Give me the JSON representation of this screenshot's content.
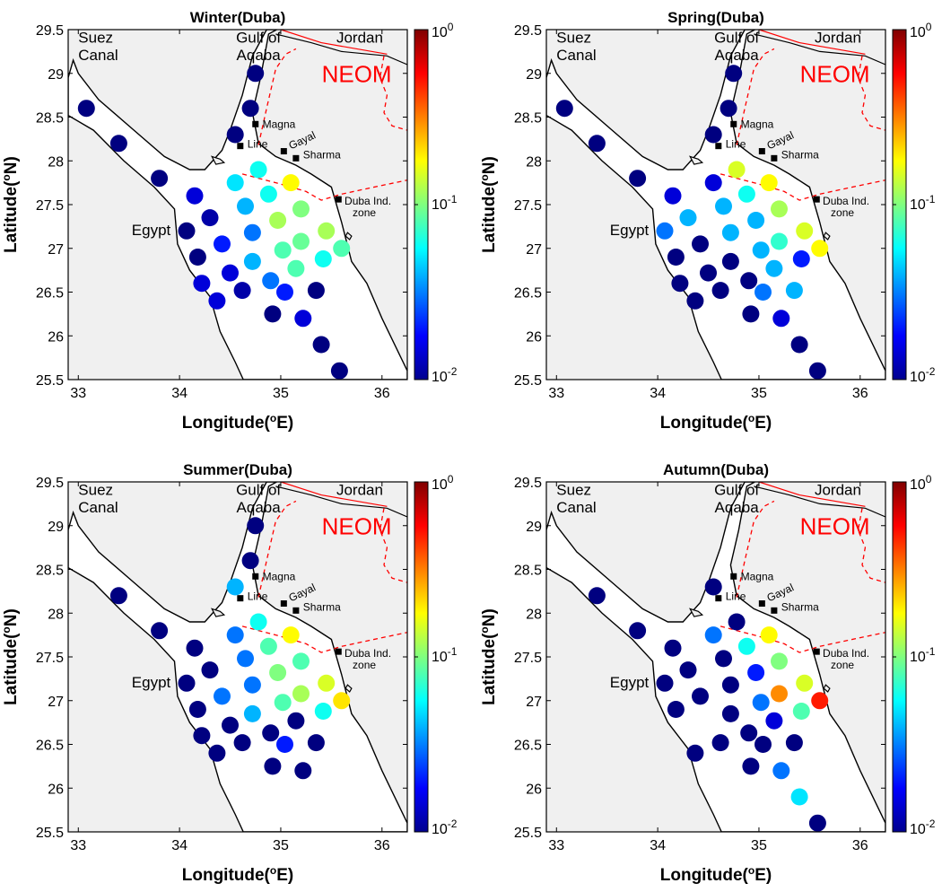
{
  "chart_data": [
    {
      "type": "scatter",
      "title": "Winter(Duba)",
      "xlabel": "Longitude(°E)",
      "ylabel": "Latitude(°N)",
      "xlim": [
        32.9,
        36.25
      ],
      "ylim": [
        25.5,
        29.5
      ],
      "xticks": [
        33,
        34,
        35,
        36
      ],
      "yticks": [
        25.5,
        26,
        26.5,
        27,
        27.5,
        28,
        28.5,
        29,
        29.5
      ],
      "color_scale": "log",
      "clim": [
        0.01,
        1
      ],
      "colorbar_ticks": [
        "10^0",
        "10^-1",
        "10^-2"
      ],
      "points": [
        {
          "lon": 33.08,
          "lat": 28.6,
          "value": 0.01
        },
        {
          "lon": 33.4,
          "lat": 28.2,
          "value": 0.01
        },
        {
          "lon": 33.8,
          "lat": 27.8,
          "value": 0.01
        },
        {
          "lon": 34.75,
          "lat": 29.0,
          "value": 0.01
        },
        {
          "lon": 34.7,
          "lat": 28.6,
          "value": 0.01
        },
        {
          "lon": 34.55,
          "lat": 28.3,
          "value": 0.01
        },
        {
          "lon": 34.78,
          "lat": 27.9,
          "value": 0.06
        },
        {
          "lon": 34.15,
          "lat": 27.6,
          "value": 0.015
        },
        {
          "lon": 34.55,
          "lat": 27.75,
          "value": 0.05
        },
        {
          "lon": 34.88,
          "lat": 27.62,
          "value": 0.06
        },
        {
          "lon": 35.1,
          "lat": 27.75,
          "value": 0.18
        },
        {
          "lon": 34.3,
          "lat": 27.35,
          "value": 0.012
        },
        {
          "lon": 34.65,
          "lat": 27.48,
          "value": 0.04
        },
        {
          "lon": 34.97,
          "lat": 27.32,
          "value": 0.12
        },
        {
          "lon": 35.2,
          "lat": 27.45,
          "value": 0.1
        },
        {
          "lon": 34.07,
          "lat": 27.2,
          "value": 0.01
        },
        {
          "lon": 34.42,
          "lat": 27.05,
          "value": 0.02
        },
        {
          "lon": 34.72,
          "lat": 27.18,
          "value": 0.03
        },
        {
          "lon": 35.02,
          "lat": 26.98,
          "value": 0.08
        },
        {
          "lon": 35.2,
          "lat": 27.08,
          "value": 0.09
        },
        {
          "lon": 35.45,
          "lat": 27.2,
          "value": 0.12
        },
        {
          "lon": 34.18,
          "lat": 26.9,
          "value": 0.01
        },
        {
          "lon": 34.5,
          "lat": 26.72,
          "value": 0.015
        },
        {
          "lon": 34.72,
          "lat": 26.85,
          "value": 0.04
        },
        {
          "lon": 34.9,
          "lat": 26.63,
          "value": 0.03
        },
        {
          "lon": 35.15,
          "lat": 26.77,
          "value": 0.08
        },
        {
          "lon": 35.42,
          "lat": 26.88,
          "value": 0.06
        },
        {
          "lon": 35.6,
          "lat": 27.0,
          "value": 0.08
        },
        {
          "lon": 34.22,
          "lat": 26.6,
          "value": 0.015
        },
        {
          "lon": 34.37,
          "lat": 26.4,
          "value": 0.015
        },
        {
          "lon": 34.62,
          "lat": 26.52,
          "value": 0.012
        },
        {
          "lon": 35.04,
          "lat": 26.5,
          "value": 0.02
        },
        {
          "lon": 35.35,
          "lat": 26.52,
          "value": 0.01
        },
        {
          "lon": 34.92,
          "lat": 26.25,
          "value": 0.01
        },
        {
          "lon": 35.22,
          "lat": 26.2,
          "value": 0.015
        },
        {
          "lon": 35.4,
          "lat": 25.9,
          "value": 0.01
        },
        {
          "lon": 35.58,
          "lat": 25.6,
          "value": 0.01
        }
      ]
    },
    {
      "type": "scatter",
      "title": "Spring(Duba)",
      "xlabel": "Longitude(°E)",
      "ylabel": "Latitude(°N)",
      "xlim": [
        32.9,
        36.25
      ],
      "ylim": [
        25.5,
        29.5
      ],
      "xticks": [
        33,
        34,
        35,
        36
      ],
      "yticks": [
        25.5,
        26,
        26.5,
        27,
        27.5,
        28,
        28.5,
        29,
        29.5
      ],
      "color_scale": "log",
      "clim": [
        0.01,
        1
      ],
      "colorbar_ticks": [
        "10^0",
        "10^-1",
        "10^-2"
      ],
      "points": [
        {
          "lon": 33.08,
          "lat": 28.6,
          "value": 0.01
        },
        {
          "lon": 33.4,
          "lat": 28.2,
          "value": 0.01
        },
        {
          "lon": 33.8,
          "lat": 27.8,
          "value": 0.01
        },
        {
          "lon": 34.75,
          "lat": 29.0,
          "value": 0.01
        },
        {
          "lon": 34.7,
          "lat": 28.6,
          "value": 0.01
        },
        {
          "lon": 34.55,
          "lat": 28.3,
          "value": 0.01
        },
        {
          "lon": 34.78,
          "lat": 27.9,
          "value": 0.15
        },
        {
          "lon": 34.15,
          "lat": 27.6,
          "value": 0.015
        },
        {
          "lon": 34.55,
          "lat": 27.75,
          "value": 0.015
        },
        {
          "lon": 34.88,
          "lat": 27.62,
          "value": 0.06
        },
        {
          "lon": 35.1,
          "lat": 27.75,
          "value": 0.18
        },
        {
          "lon": 34.3,
          "lat": 27.35,
          "value": 0.04
        },
        {
          "lon": 34.65,
          "lat": 27.48,
          "value": 0.04
        },
        {
          "lon": 34.97,
          "lat": 27.32,
          "value": 0.04
        },
        {
          "lon": 35.2,
          "lat": 27.45,
          "value": 0.12
        },
        {
          "lon": 34.07,
          "lat": 27.2,
          "value": 0.03
        },
        {
          "lon": 34.42,
          "lat": 27.05,
          "value": 0.01
        },
        {
          "lon": 34.72,
          "lat": 27.18,
          "value": 0.04
        },
        {
          "lon": 35.02,
          "lat": 26.98,
          "value": 0.04
        },
        {
          "lon": 35.2,
          "lat": 27.08,
          "value": 0.07
        },
        {
          "lon": 35.45,
          "lat": 27.2,
          "value": 0.15
        },
        {
          "lon": 34.18,
          "lat": 26.9,
          "value": 0.01
        },
        {
          "lon": 34.5,
          "lat": 26.72,
          "value": 0.01
        },
        {
          "lon": 34.72,
          "lat": 26.85,
          "value": 0.01
        },
        {
          "lon": 34.9,
          "lat": 26.63,
          "value": 0.01
        },
        {
          "lon": 35.15,
          "lat": 26.77,
          "value": 0.04
        },
        {
          "lon": 35.42,
          "lat": 26.88,
          "value": 0.02
        },
        {
          "lon": 35.6,
          "lat": 27.0,
          "value": 0.18
        },
        {
          "lon": 34.22,
          "lat": 26.6,
          "value": 0.01
        },
        {
          "lon": 34.37,
          "lat": 26.4,
          "value": 0.01
        },
        {
          "lon": 34.62,
          "lat": 26.52,
          "value": 0.01
        },
        {
          "lon": 35.04,
          "lat": 26.5,
          "value": 0.03
        },
        {
          "lon": 35.35,
          "lat": 26.52,
          "value": 0.04
        },
        {
          "lon": 34.92,
          "lat": 26.25,
          "value": 0.01
        },
        {
          "lon": 35.22,
          "lat": 26.2,
          "value": 0.015
        },
        {
          "lon": 35.4,
          "lat": 25.9,
          "value": 0.01
        },
        {
          "lon": 35.58,
          "lat": 25.6,
          "value": 0.01
        }
      ]
    },
    {
      "type": "scatter",
      "title": "Summer(Duba)",
      "xlabel": "Longitude(°E)",
      "ylabel": "Latitude(°N)",
      "xlim": [
        32.9,
        36.25
      ],
      "ylim": [
        25.5,
        29.5
      ],
      "xticks": [
        33,
        34,
        35,
        36
      ],
      "yticks": [
        25.5,
        26,
        26.5,
        27,
        27.5,
        28,
        28.5,
        29,
        29.5
      ],
      "color_scale": "log",
      "clim": [
        0.01,
        1
      ],
      "colorbar_ticks": [
        "10^0",
        "10^-1",
        "10^-2"
      ],
      "points": [
        {
          "lon": 33.4,
          "lat": 28.2,
          "value": 0.01
        },
        {
          "lon": 33.8,
          "lat": 27.8,
          "value": 0.01
        },
        {
          "lon": 34.75,
          "lat": 29.0,
          "value": 0.01
        },
        {
          "lon": 34.7,
          "lat": 28.6,
          "value": 0.01
        },
        {
          "lon": 34.55,
          "lat": 28.3,
          "value": 0.04
        },
        {
          "lon": 34.78,
          "lat": 27.9,
          "value": 0.06
        },
        {
          "lon": 34.15,
          "lat": 27.6,
          "value": 0.01
        },
        {
          "lon": 34.55,
          "lat": 27.75,
          "value": 0.03
        },
        {
          "lon": 34.88,
          "lat": 27.62,
          "value": 0.08
        },
        {
          "lon": 35.1,
          "lat": 27.75,
          "value": 0.18
        },
        {
          "lon": 34.3,
          "lat": 27.35,
          "value": 0.01
        },
        {
          "lon": 34.65,
          "lat": 27.48,
          "value": 0.03
        },
        {
          "lon": 34.97,
          "lat": 27.32,
          "value": 0.1
        },
        {
          "lon": 35.2,
          "lat": 27.45,
          "value": 0.08
        },
        {
          "lon": 34.07,
          "lat": 27.2,
          "value": 0.01
        },
        {
          "lon": 34.42,
          "lat": 27.05,
          "value": 0.03
        },
        {
          "lon": 34.72,
          "lat": 27.18,
          "value": 0.03
        },
        {
          "lon": 35.02,
          "lat": 26.98,
          "value": 0.08
        },
        {
          "lon": 35.2,
          "lat": 27.08,
          "value": 0.12
        },
        {
          "lon": 35.45,
          "lat": 27.2,
          "value": 0.15
        },
        {
          "lon": 34.18,
          "lat": 26.9,
          "value": 0.01
        },
        {
          "lon": 34.5,
          "lat": 26.72,
          "value": 0.01
        },
        {
          "lon": 34.72,
          "lat": 26.85,
          "value": 0.04
        },
        {
          "lon": 34.9,
          "lat": 26.63,
          "value": 0.01
        },
        {
          "lon": 35.15,
          "lat": 26.77,
          "value": 0.01
        },
        {
          "lon": 35.42,
          "lat": 26.88,
          "value": 0.06
        },
        {
          "lon": 35.6,
          "lat": 27.0,
          "value": 0.2
        },
        {
          "lon": 34.22,
          "lat": 26.6,
          "value": 0.01
        },
        {
          "lon": 34.37,
          "lat": 26.4,
          "value": 0.01
        },
        {
          "lon": 34.62,
          "lat": 26.52,
          "value": 0.01
        },
        {
          "lon": 35.04,
          "lat": 26.5,
          "value": 0.02
        },
        {
          "lon": 35.35,
          "lat": 26.52,
          "value": 0.01
        },
        {
          "lon": 34.92,
          "lat": 26.25,
          "value": 0.01
        },
        {
          "lon": 35.22,
          "lat": 26.2,
          "value": 0.01
        }
      ]
    },
    {
      "type": "scatter",
      "title": "Autumn(Duba)",
      "xlabel": "Longitude(°E)",
      "ylabel": "Latitude(°N)",
      "xlim": [
        32.9,
        36.25
      ],
      "ylim": [
        25.5,
        29.5
      ],
      "xticks": [
        33,
        34,
        35,
        36
      ],
      "yticks": [
        25.5,
        26,
        26.5,
        27,
        27.5,
        28,
        28.5,
        29,
        29.5
      ],
      "color_scale": "log",
      "clim": [
        0.01,
        1
      ],
      "colorbar_ticks": [
        "10^0",
        "10^-1",
        "10^-2"
      ],
      "points": [
        {
          "lon": 33.4,
          "lat": 28.2,
          "value": 0.01
        },
        {
          "lon": 33.8,
          "lat": 27.8,
          "value": 0.01
        },
        {
          "lon": 34.55,
          "lat": 28.3,
          "value": 0.01
        },
        {
          "lon": 34.78,
          "lat": 27.9,
          "value": 0.01
        },
        {
          "lon": 34.15,
          "lat": 27.6,
          "value": 0.01
        },
        {
          "lon": 34.55,
          "lat": 27.75,
          "value": 0.03
        },
        {
          "lon": 34.88,
          "lat": 27.62,
          "value": 0.06
        },
        {
          "lon": 35.1,
          "lat": 27.75,
          "value": 0.18
        },
        {
          "lon": 34.3,
          "lat": 27.35,
          "value": 0.01
        },
        {
          "lon": 34.65,
          "lat": 27.48,
          "value": 0.01
        },
        {
          "lon": 34.97,
          "lat": 27.32,
          "value": 0.02
        },
        {
          "lon": 35.2,
          "lat": 27.45,
          "value": 0.1
        },
        {
          "lon": 34.07,
          "lat": 27.2,
          "value": 0.01
        },
        {
          "lon": 34.42,
          "lat": 27.05,
          "value": 0.01
        },
        {
          "lon": 34.72,
          "lat": 27.18,
          "value": 0.01
        },
        {
          "lon": 35.02,
          "lat": 26.98,
          "value": 0.03
        },
        {
          "lon": 35.2,
          "lat": 27.08,
          "value": 0.3
        },
        {
          "lon": 35.45,
          "lat": 27.2,
          "value": 0.15
        },
        {
          "lon": 34.18,
          "lat": 26.9,
          "value": 0.01
        },
        {
          "lon": 34.72,
          "lat": 26.85,
          "value": 0.01
        },
        {
          "lon": 34.9,
          "lat": 26.63,
          "value": 0.01
        },
        {
          "lon": 35.15,
          "lat": 26.77,
          "value": 0.015
        },
        {
          "lon": 35.42,
          "lat": 26.88,
          "value": 0.08
        },
        {
          "lon": 35.6,
          "lat": 27.0,
          "value": 0.5
        },
        {
          "lon": 34.37,
          "lat": 26.4,
          "value": 0.01
        },
        {
          "lon": 34.62,
          "lat": 26.52,
          "value": 0.01
        },
        {
          "lon": 35.04,
          "lat": 26.5,
          "value": 0.01
        },
        {
          "lon": 35.35,
          "lat": 26.52,
          "value": 0.01
        },
        {
          "lon": 34.92,
          "lat": 26.25,
          "value": 0.01
        },
        {
          "lon": 35.22,
          "lat": 26.2,
          "value": 0.03
        },
        {
          "lon": 35.4,
          "lat": 25.9,
          "value": 0.05
        },
        {
          "lon": 35.58,
          "lat": 25.6,
          "value": 0.01
        }
      ]
    }
  ],
  "map_labels": {
    "suez_line1": "Suez",
    "suez_line2": "Canal",
    "aqaba_line1": "Gulf of",
    "aqaba_line2": "Aqaba",
    "jordan": "Jordan",
    "neom": "NEOM",
    "egypt": "Egypt",
    "magna": "Magna",
    "line": "Line",
    "gayal": "Gayal",
    "sharma": "Sharma",
    "duba_line1": "Duba Ind.",
    "duba_line2": "zone"
  },
  "colors": {
    "land": "#f0f0f0",
    "sea": "#ffffff",
    "border": "#ff0000",
    "neom_label": "#ff0000"
  },
  "colormap": "jet"
}
